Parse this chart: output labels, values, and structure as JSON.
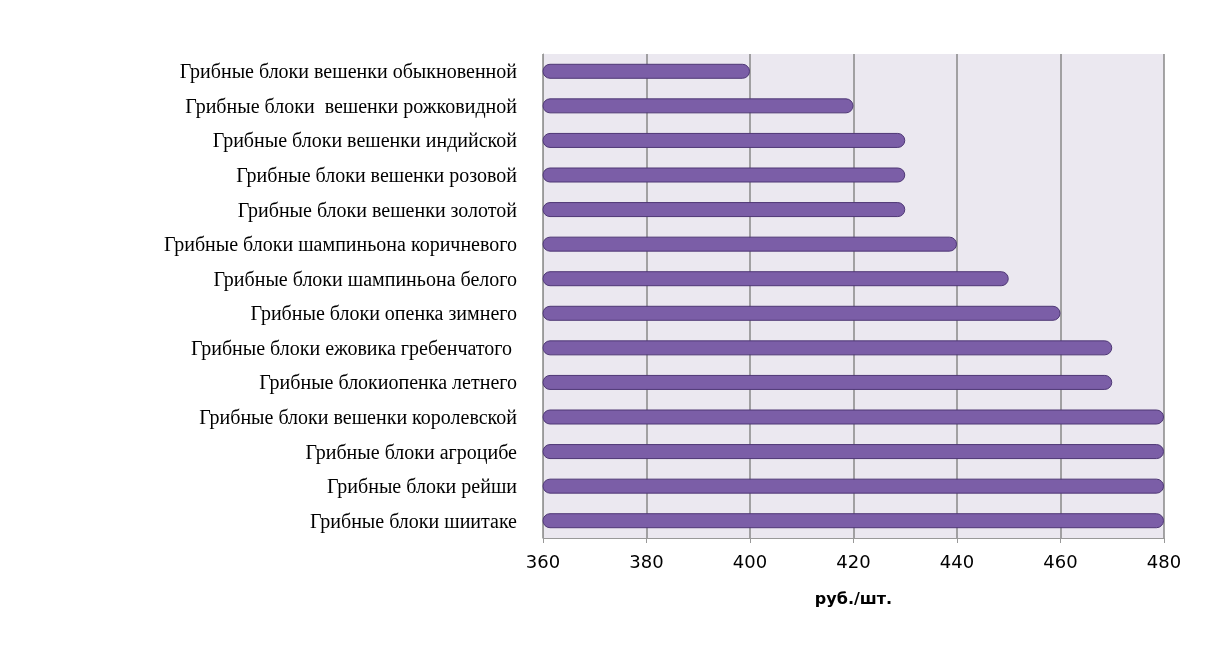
{
  "chart_data": {
    "type": "bar",
    "orientation": "horizontal",
    "xlabel": "руб./шт.",
    "categories": [
      "Грибные блоки вешенки обыкновенной",
      "Грибные блоки  вешенки рожковидной",
      "Грибные блоки вешенки индийской",
      "Грибные блоки вешенки розовой",
      "Грибные блоки вешенки золотой",
      "Грибные блоки шампиньона коричневого",
      "Грибные блоки шампиньона белого",
      "Грибные блоки опенка зимнего",
      "Грибные блоки ежовика гребенчатого ",
      "Грибные блокиопенка летнего",
      "Грибные блоки вешенки королевской",
      "Грибные блоки агроцибе",
      "Грибные блоки рейши",
      "Грибные блоки шиитаке"
    ],
    "values": [
      400,
      420,
      430,
      430,
      430,
      440,
      450,
      460,
      470,
      470,
      480,
      480,
      480,
      480
    ],
    "color": "#7b5ea7",
    "xlim": [
      360,
      480
    ],
    "xticks": [
      360,
      380,
      400,
      420,
      440,
      460,
      480
    ],
    "grid": "x"
  }
}
